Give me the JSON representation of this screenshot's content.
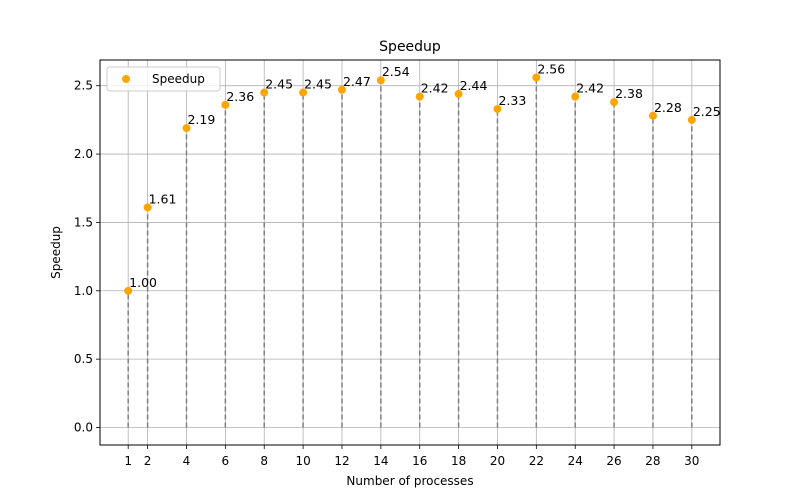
{
  "chart_data": {
    "type": "scatter",
    "title": "Speedup",
    "xlabel": "Number of processes",
    "ylabel": "Speedup",
    "x": [
      1,
      2,
      4,
      6,
      8,
      10,
      12,
      14,
      16,
      18,
      20,
      22,
      24,
      26,
      28,
      30
    ],
    "series": [
      {
        "name": "Speedup",
        "values": [
          1.0,
          1.61,
          2.19,
          2.36,
          2.45,
          2.45,
          2.47,
          2.54,
          2.42,
          2.44,
          2.33,
          2.56,
          2.42,
          2.38,
          2.28,
          2.25
        ],
        "labels": [
          "1.00",
          "1.61",
          "2.19",
          "2.36",
          "2.45",
          "2.45",
          "2.47",
          "2.54",
          "2.42",
          "2.44",
          "2.33",
          "2.56",
          "2.42",
          "2.38",
          "2.28",
          "2.25"
        ]
      }
    ],
    "xticks": [
      "1",
      "2",
      "4",
      "6",
      "8",
      "10",
      "12",
      "14",
      "16",
      "18",
      "20",
      "22",
      "24",
      "26",
      "28",
      "30"
    ],
    "yticks": [
      "0.0",
      "0.5",
      "1.0",
      "1.5",
      "2.0",
      "2.5"
    ],
    "xlim": [
      -0.45,
      31.45
    ],
    "ylim": [
      -0.128,
      2.688
    ],
    "grid": true,
    "legend_position": "top-left",
    "colors": {
      "marker": "#ffa500",
      "stem": "#808080",
      "grid": "#b0b0b0",
      "axis": "#000000"
    }
  }
}
